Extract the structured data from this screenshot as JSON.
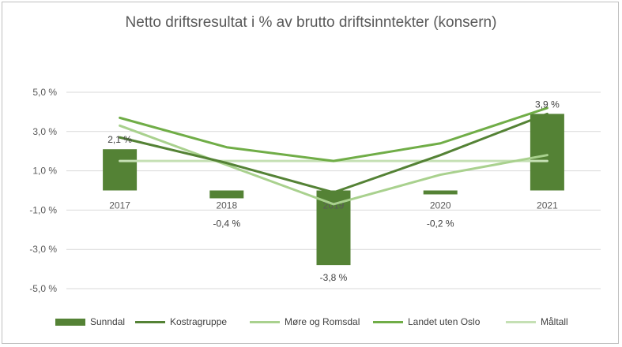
{
  "chart_data": {
    "type": "bar",
    "title": "Netto driftsresultat i % av brutto driftsinntekter (konsern)",
    "categories": [
      "2017",
      "2018",
      "2019",
      "2020",
      "2021"
    ],
    "y_ticks": [
      "5,0 %",
      "3,0 %",
      "1,0 %",
      "-1,0 %",
      "-3,0 %",
      "-5,0 %"
    ],
    "ylim": [
      -5,
      5
    ],
    "grid": true,
    "legend_position": "bottom",
    "series": [
      {
        "name": "Sunndal",
        "kind": "bar",
        "color": "#548235",
        "values": [
          2.1,
          -0.4,
          -3.8,
          -0.2,
          3.9
        ],
        "labels": [
          "2,1 %",
          "-0,4 %",
          "-3,8 %",
          "-0,2 %",
          "3,9 %"
        ]
      },
      {
        "name": "Kostragruppe",
        "kind": "line",
        "color": "#548235",
        "values": [
          2.7,
          1.4,
          -0.1,
          1.8,
          3.9
        ]
      },
      {
        "name": "Møre og Romsdal",
        "kind": "line",
        "color": "#a9d18e",
        "values": [
          3.3,
          1.3,
          -0.7,
          0.8,
          1.8
        ]
      },
      {
        "name": "Landet uten Oslo",
        "kind": "line",
        "color": "#70ad47",
        "values": [
          3.7,
          2.2,
          1.5,
          2.4,
          4.2
        ]
      },
      {
        "name": "Måltall",
        "kind": "line",
        "color": "#c5e0b4",
        "values": [
          1.5,
          1.5,
          1.5,
          1.5,
          1.5
        ]
      }
    ]
  }
}
